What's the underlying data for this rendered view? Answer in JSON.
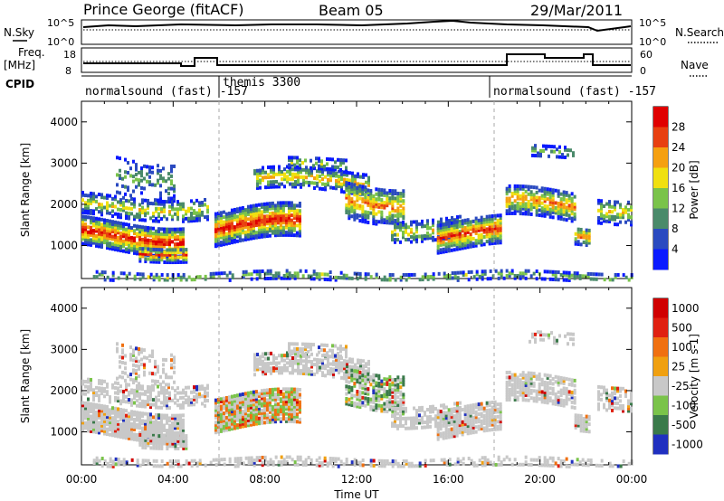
{
  "header": {
    "station": "Prince George (fitACF)",
    "beam": "Beam 05",
    "date": "29/Mar/2011"
  },
  "top_panels": {
    "nsky_label": "N.Sky",
    "nsky_ticks": [
      "10^5",
      "10^0"
    ],
    "nsearch_label": "N.Search",
    "nsearch_ticks": [
      "10^5",
      "10^0"
    ],
    "freq_label_1": "Freq.",
    "freq_label_2": "[MHz]",
    "freq_ticks": [
      "18",
      "8"
    ],
    "nave_label": "Nave",
    "nave_ticks": [
      "60",
      "0"
    ],
    "cpid_label": "CPID",
    "cpid_segments": [
      {
        "text": "normalsound (fast) -157"
      },
      {
        "text": "themis 3300"
      },
      {
        "text": "normalsound (fast) -157"
      }
    ]
  },
  "chart_data": [
    {
      "type": "heatmap",
      "panel": "power",
      "ylabel": "Slant Range [km]",
      "y_ticks": [
        "1000",
        "2000",
        "3000",
        "4000"
      ],
      "ylim": [
        200,
        4500
      ],
      "xlim_hours": [
        0,
        24
      ],
      "colorbar_label": "Power [dB]",
      "colorbar_ticks": [
        "4",
        "8",
        "12",
        "16",
        "20",
        "24",
        "28"
      ],
      "colorbar_colors": [
        "#0a1aff",
        "#2a4ac0",
        "#4a8a6a",
        "#7ac34a",
        "#f0e010",
        "#f5a010",
        "#e84010",
        "#e00000"
      ]
    },
    {
      "type": "heatmap",
      "panel": "velocity",
      "ylabel": "Slant Range [km]",
      "y_ticks": [
        "1000",
        "2000",
        "3000",
        "4000"
      ],
      "ylim": [
        200,
        4500
      ],
      "xlim_hours": [
        0,
        24
      ],
      "xlabel": "Time UT",
      "x_ticks": [
        "00:00",
        "04:00",
        "08:00",
        "12:00",
        "16:00",
        "20:00",
        "00:00"
      ],
      "colorbar_label": "Velocity [m s-1]",
      "colorbar_ticks": [
        "1000",
        "500",
        "100",
        "25",
        "-25",
        "-100",
        "-500",
        "-1000"
      ],
      "colorbar_colors": [
        "#2030c0",
        "#3a7a4a",
        "#7ac34a",
        "#c8c8c8",
        "#f0a010",
        "#f07010",
        "#e02010",
        "#d00000"
      ]
    }
  ]
}
